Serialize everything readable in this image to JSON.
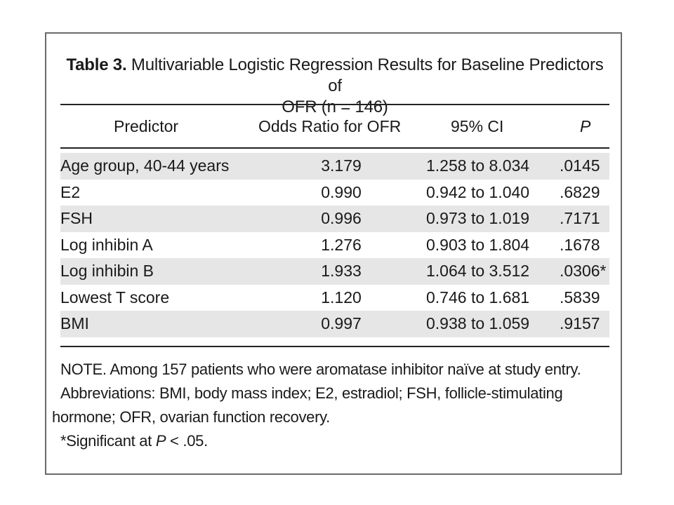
{
  "table": {
    "caption_label": "Table 3.",
    "caption_text_line1": "Multivariable Logistic Regression Results for Baseline Predictors of",
    "caption_text_line2": "OFR (n = 146)",
    "headers": {
      "predictor": "Predictor",
      "odds_ratio": "Odds Ratio for OFR",
      "ci": "95% CI",
      "p": "P"
    },
    "rows": [
      {
        "predictor": "Age group, 40-44 years",
        "odds_ratio": "3.179",
        "ci": "1.258 to 8.034",
        "p": ".0145"
      },
      {
        "predictor": "E2",
        "odds_ratio": "0.990",
        "ci": "0.942 to 1.040",
        "p": ".6829"
      },
      {
        "predictor": "FSH",
        "odds_ratio": "0.996",
        "ci": "0.973 to 1.019",
        "p": ".7171"
      },
      {
        "predictor": "Log inhibin A",
        "odds_ratio": "1.276",
        "ci": "0.903 to 1.804",
        "p": ".1678"
      },
      {
        "predictor": "Log inhibin B",
        "odds_ratio": "1.933",
        "ci": "1.064 to 3.512",
        "p": ".0306*"
      },
      {
        "predictor": "Lowest T score",
        "odds_ratio": "1.120",
        "ci": "0.746 to 1.681",
        "p": ".5839"
      },
      {
        "predictor": "BMI",
        "odds_ratio": "0.997",
        "ci": "0.938 to 1.059",
        "p": ".9157"
      }
    ],
    "notes": {
      "line1": "NOTE. Among 157 patients who were aromatase inhibitor  naïve at study entry.",
      "line2": "Abbreviations: BMI, body mass index; E2, estradiol; FSH, follicle-stimulating",
      "line3": "hormone; OFR, ovarian function recovery.",
      "sig_prefix": "*Significant at ",
      "sig_italic": "P",
      "sig_suffix": " < .05."
    }
  }
}
